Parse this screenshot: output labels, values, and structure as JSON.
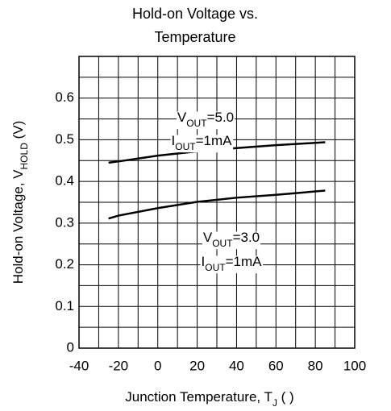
{
  "chart_data": {
    "type": "line",
    "title": [
      "Hold-on Voltage vs.",
      "Temperature"
    ],
    "xlabel": {
      "text": "Junction Temperature, T",
      "sub": "J",
      "rest": " (   )"
    },
    "ylabel": {
      "text": "Hold-on Voltage, V",
      "sub": "HOLD",
      "rest": " (V)"
    },
    "xlim": [
      -40,
      100
    ],
    "xticks": [
      -40,
      -20,
      0,
      20,
      40,
      60,
      80,
      100
    ],
    "ylim": [
      0,
      0.7
    ],
    "yticks": [
      0,
      0.1,
      0.2,
      0.3,
      0.4,
      0.5,
      0.6
    ],
    "grid": true,
    "x": [
      -25,
      -20,
      0,
      20,
      40,
      60,
      85
    ],
    "series": [
      {
        "color": "#000000",
        "values": [
          0.445,
          0.448,
          0.462,
          0.472,
          0.48,
          0.487,
          0.494
        ]
      },
      {
        "color": "#000000",
        "values": [
          0.311,
          0.318,
          0.336,
          0.351,
          0.361,
          0.368,
          0.378
        ]
      }
    ],
    "annotations": [
      {
        "text": "V",
        "sub": "OUT",
        "rest": "=5.0"
      },
      {
        "text": "I",
        "sub": "OUT",
        "rest": "=1mA"
      },
      {
        "text": "V",
        "sub": "OUT",
        "rest": "=3.0"
      },
      {
        "text": "I",
        "sub": "OUT",
        "rest": "=1mA"
      }
    ]
  }
}
